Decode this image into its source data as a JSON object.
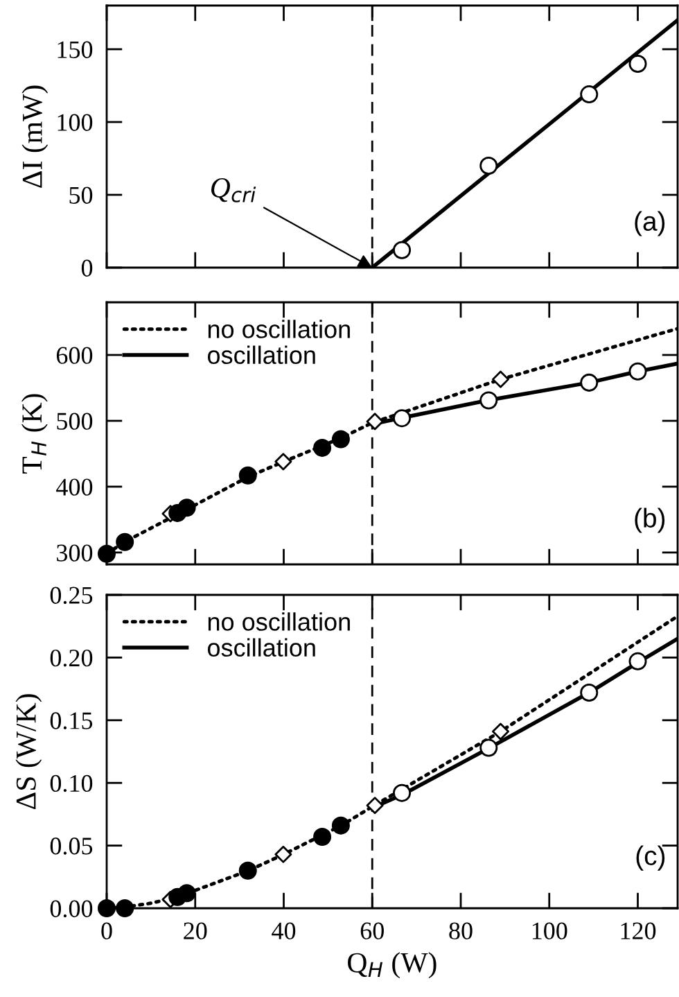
{
  "chart_data": [
    {
      "type": "line",
      "ylabel": "ΔI (mW)",
      "xlim": [
        0,
        129
      ],
      "ylim": [
        0,
        180
      ],
      "xticks": [
        0,
        20,
        40,
        60,
        80,
        100,
        120
      ],
      "yticks": [
        0,
        50,
        100,
        150
      ],
      "tick_labels": "y",
      "legend": false,
      "grid": false,
      "series": [
        {
          "color": "#000000",
          "line_style": "solid",
          "marker": "none",
          "x": [
            60,
            129
          ],
          "values": [
            0,
            170
          ]
        },
        {
          "type": "scatter",
          "color": "#ffffff",
          "marker": "circle",
          "x": [
            66.7,
            86.3,
            109,
            120
          ],
          "values": [
            12,
            70,
            119,
            140
          ]
        }
      ],
      "ref_lines": [
        {
          "axis": "x",
          "value": 60,
          "line_style": "dashed",
          "color": "#000000"
        }
      ],
      "annotations": [
        {
          "text": "Q$_{cri}$",
          "x": 60,
          "y": 0
        },
        "(a)"
      ]
    },
    {
      "type": "line",
      "ylabel": "T$_{H}$ (K)",
      "xlim": [
        0,
        129
      ],
      "ylim": [
        282,
        680
      ],
      "xticks": [
        0,
        20,
        40,
        60,
        80,
        100,
        120
      ],
      "yticks": [
        300,
        400,
        500,
        600
      ],
      "tick_labels": "y",
      "legend": "top left",
      "grid": false,
      "series": [
        {
          "name": "no oscillation",
          "color": "#000000",
          "line_style": "dotted",
          "marker": "none",
          "x": [
            0,
            4,
            16,
            32,
            40,
            53,
            60,
            89,
            129
          ],
          "values": [
            298,
            316,
            358,
            415,
            438,
            474,
            497,
            563,
            640
          ]
        },
        {
          "name": "oscillation",
          "color": "#000000",
          "line_style": "solid",
          "marker": "none",
          "x": [
            60,
            67,
            86,
            109,
            120,
            129
          ],
          "values": [
            495,
            505,
            531,
            558,
            575,
            587
          ]
        },
        {
          "type": "scatter",
          "color": "#ffffff",
          "marker": "diamond",
          "x": [
            14.4,
            39.9,
            60.6,
            89
          ],
          "values": [
            359,
            438,
            499,
            563
          ]
        },
        {
          "type": "scatter",
          "color": "#000000",
          "marker": "circle",
          "x": [
            0,
            4.1,
            16,
            18.1,
            31.9,
            48.7,
            52.9
          ],
          "values": [
            298,
            316,
            360,
            368,
            417,
            459,
            472
          ]
        },
        {
          "type": "scatter",
          "color": "#ffffff",
          "marker": "circle",
          "x": [
            66.7,
            86.3,
            109,
            120
          ],
          "values": [
            504,
            531,
            558,
            575
          ]
        }
      ],
      "ref_lines": [
        {
          "axis": "x",
          "value": 60,
          "line_style": "dashed",
          "color": "#000000"
        }
      ],
      "annotations": [
        "(b)"
      ]
    },
    {
      "type": "line",
      "ylabel": "ΔS (W/K)",
      "xlabel": "Q$_{H}$ (W)",
      "xlim": [
        0,
        129
      ],
      "ylim": [
        0,
        0.25
      ],
      "xticks": [
        0,
        20,
        40,
        60,
        80,
        100,
        120
      ],
      "yticks": [
        {
          "value": 0,
          "label": "0.00"
        },
        {
          "value": 0.05,
          "label": "0.05"
        },
        {
          "value": 0.1,
          "label": "0.10"
        },
        {
          "value": 0.15,
          "label": "0.15"
        },
        {
          "value": 0.2,
          "label": "0.20"
        },
        {
          "value": 0.25,
          "label": "0.25"
        }
      ],
      "legend": "top left",
      "grid": false,
      "series": [
        {
          "name": "no oscillation",
          "color": "#000000",
          "line_style": "dotted",
          "marker": "none",
          "x": [
            0,
            4,
            10,
            16,
            32,
            40,
            53,
            60,
            89,
            129
          ],
          "values": [
            0,
            0.001,
            0.004,
            0.009,
            0.03,
            0.043,
            0.066,
            0.081,
            0.141,
            0.233
          ]
        },
        {
          "name": "oscillation",
          "color": "#000000",
          "line_style": "solid",
          "marker": "none",
          "x": [
            60,
            67,
            86,
            109,
            120,
            129
          ],
          "values": [
            0.08,
            0.091,
            0.127,
            0.172,
            0.196,
            0.215
          ]
        },
        {
          "type": "scatter",
          "color": "#ffffff",
          "marker": "diamond",
          "x": [
            14.4,
            39.9,
            60.6,
            89
          ],
          "values": [
            0.007,
            0.043,
            0.082,
            0.141
          ]
        },
        {
          "type": "scatter",
          "color": "#000000",
          "marker": "circle",
          "x": [
            0,
            4.1,
            16,
            18.1,
            31.9,
            48.7,
            52.9
          ],
          "values": [
            0,
            0,
            0.009,
            0.012,
            0.03,
            0.057,
            0.066
          ]
        },
        {
          "type": "scatter",
          "color": "#ffffff",
          "marker": "circle",
          "x": [
            66.7,
            86.3,
            109,
            120
          ],
          "values": [
            0.092,
            0.128,
            0.172,
            0.197
          ]
        }
      ],
      "ref_lines": [
        {
          "axis": "x",
          "value": 60,
          "line_style": "dashed",
          "color": "#000000"
        }
      ],
      "annotations": [
        "(c)"
      ]
    }
  ]
}
